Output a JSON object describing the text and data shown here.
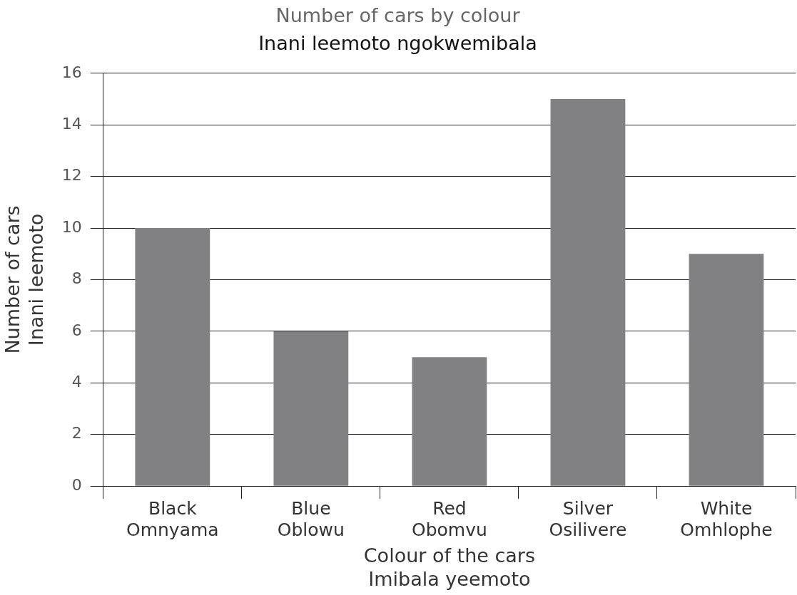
{
  "chart_data": {
    "type": "bar",
    "title": "Number of cars by colour",
    "subtitle": "Inani leemoto ngokwemibala",
    "xlabel": "Colour of the cars\nImibala yeemoto",
    "ylabel": "Number of cars\nInani leemoto",
    "categories": [
      "Black\nOmnyama",
      "Blue\nOblowu",
      "Red\nObomvu",
      "Silver\nOsilivere",
      "White\nOmhlophe"
    ],
    "values": [
      10,
      6,
      5,
      15,
      9
    ],
    "color": "#818184",
    "ylim": [
      0,
      16
    ],
    "yticks": [
      0,
      2,
      4,
      6,
      8,
      10,
      12,
      14,
      16
    ],
    "grid": "y"
  }
}
